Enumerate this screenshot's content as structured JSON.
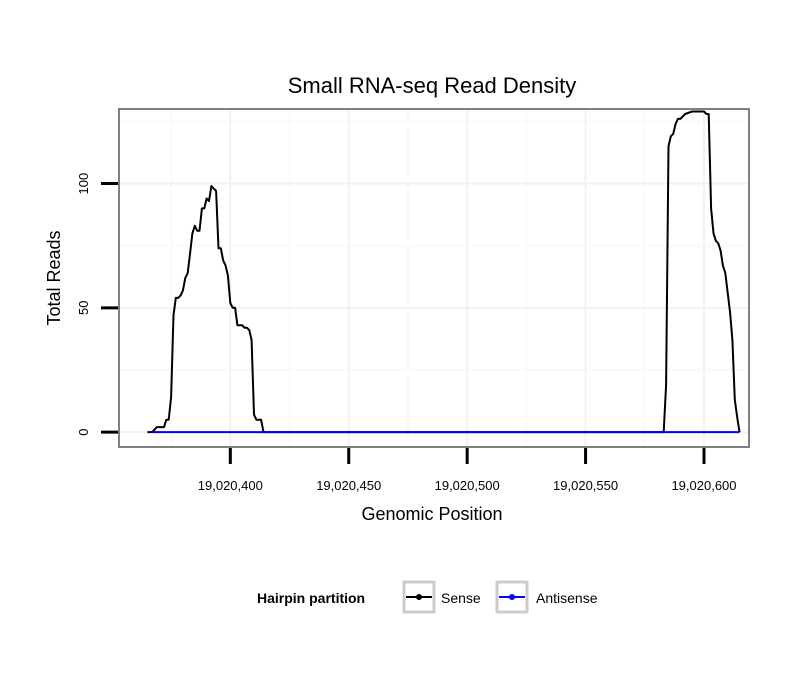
{
  "chart_data": {
    "type": "line",
    "title": "Small RNA-seq Read Density",
    "xlabel": "Genomic Position",
    "ylabel": "Total Reads",
    "xlim": [
      19020353,
      19020619
    ],
    "ylim": [
      -6,
      130
    ],
    "x_ticks": [
      19020400,
      19020450,
      19020500,
      19020550,
      19020600
    ],
    "x_tick_labels": [
      "19,020,400",
      "19,020,450",
      "19,020,500",
      "19,020,550",
      "19,020,600"
    ],
    "y_ticks": [
      0,
      50,
      100
    ],
    "y_tick_labels": [
      "0",
      "50",
      "100"
    ],
    "grid": true,
    "legend": {
      "title": "Hairpin partition",
      "position": "bottom",
      "entries": [
        {
          "name": "Sense",
          "color": "#000000"
        },
        {
          "name": "Antisense",
          "color": "#0000ff"
        }
      ]
    },
    "series": [
      {
        "name": "Sense",
        "color": "#000000",
        "x": [
          19020365,
          19020367,
          19020369,
          19020372,
          19020373,
          19020374,
          19020375,
          19020376,
          19020377,
          19020378,
          19020379,
          19020380,
          19020381,
          19020382,
          19020383,
          19020384,
          19020385,
          19020386,
          19020387,
          19020388,
          19020389,
          19020390,
          19020391,
          19020392,
          19020393,
          19020394,
          19020395,
          19020396,
          19020397,
          19020398,
          19020399,
          19020400,
          19020401,
          19020402,
          19020403,
          19020404,
          19020405,
          19020406,
          19020407,
          19020408,
          19020409,
          19020410,
          19020411,
          19020412,
          19020413,
          19020414,
          19020416,
          19020417,
          19020418,
          19020583,
          19020584,
          19020585,
          19020586,
          19020587,
          19020588,
          19020589,
          19020590,
          19020592,
          19020595,
          19020598,
          19020599,
          19020600,
          19020601,
          19020602,
          19020603,
          19020604,
          19020605,
          19020606,
          19020607,
          19020608,
          19020609,
          19020610,
          19020611,
          19020612,
          19020613,
          19020614,
          19020615
        ],
        "values": [
          0,
          0,
          2,
          2,
          5,
          5,
          14,
          47,
          54,
          54,
          55,
          57,
          62,
          64,
          72,
          80,
          83,
          81,
          81,
          90,
          90,
          94,
          93,
          99,
          98,
          97,
          74,
          74,
          69,
          67,
          63,
          52,
          50,
          50,
          43,
          43,
          43,
          42,
          42,
          41,
          37,
          7,
          5,
          5,
          5,
          0,
          0,
          0,
          0,
          0,
          19,
          115,
          119,
          120,
          124,
          126,
          126,
          128,
          129,
          129,
          129,
          129,
          128,
          128,
          90,
          80,
          77,
          76,
          73,
          67,
          64,
          56,
          48,
          37,
          13,
          6,
          0
        ]
      },
      {
        "name": "Antisense",
        "color": "#0000ff",
        "x": [
          19020367,
          19020615
        ],
        "values": [
          0,
          0
        ]
      }
    ]
  }
}
